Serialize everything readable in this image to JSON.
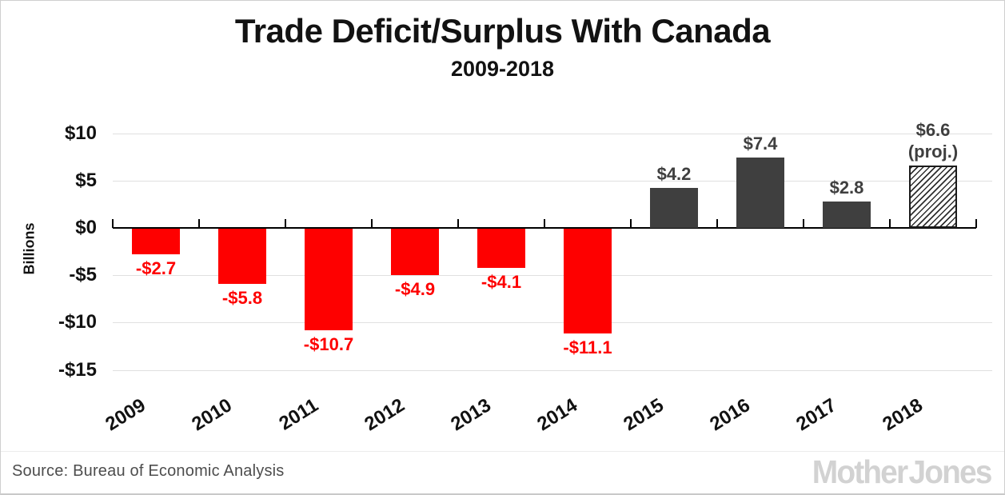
{
  "colors": {
    "negative_bar": "#fe0000",
    "positive_bar": "#3f3f3f",
    "projected_bar_outline": "#1c1c1c",
    "gridline": "#e0e0e0",
    "axis": "#000000",
    "title_text": "#121212",
    "source_text": "#4d4d4d",
    "logo_text": "#d2d2d2"
  },
  "footer": {
    "source": "Source: Bureau of Economic Analysis",
    "logo_text": "Mother Jones"
  },
  "chart_data": {
    "type": "bar",
    "title": "Trade Deficit/Surplus With Canada",
    "subtitle": "2009-2018",
    "ylabel": "Billions",
    "xlabel": "",
    "categories": [
      "2009",
      "2010",
      "2011",
      "2012",
      "2013",
      "2014",
      "2015",
      "2016",
      "2017",
      "2018"
    ],
    "values": [
      -2.7,
      -5.8,
      -10.7,
      -4.9,
      -4.1,
      -11.1,
      4.2,
      7.4,
      2.8,
      6.6
    ],
    "bar_labels": [
      "-$2.7",
      "-$5.8",
      "-$10.7",
      "-$4.9",
      "-$4.1",
      "-$11.1",
      "$4.2",
      "$7.4",
      "$2.8",
      "$6.6\n(proj.)"
    ],
    "projected_index": 9,
    "projected_style": "diagonal-hatch",
    "ytick_values": [
      10,
      5,
      0,
      -5,
      -10,
      -15
    ],
    "ytick_labels": [
      "$10",
      "$5",
      "$0",
      "-$5",
      "-$10",
      "-$15"
    ],
    "ylim": [
      -15,
      10
    ],
    "grid": true,
    "legend": false,
    "units": "billions USD"
  }
}
